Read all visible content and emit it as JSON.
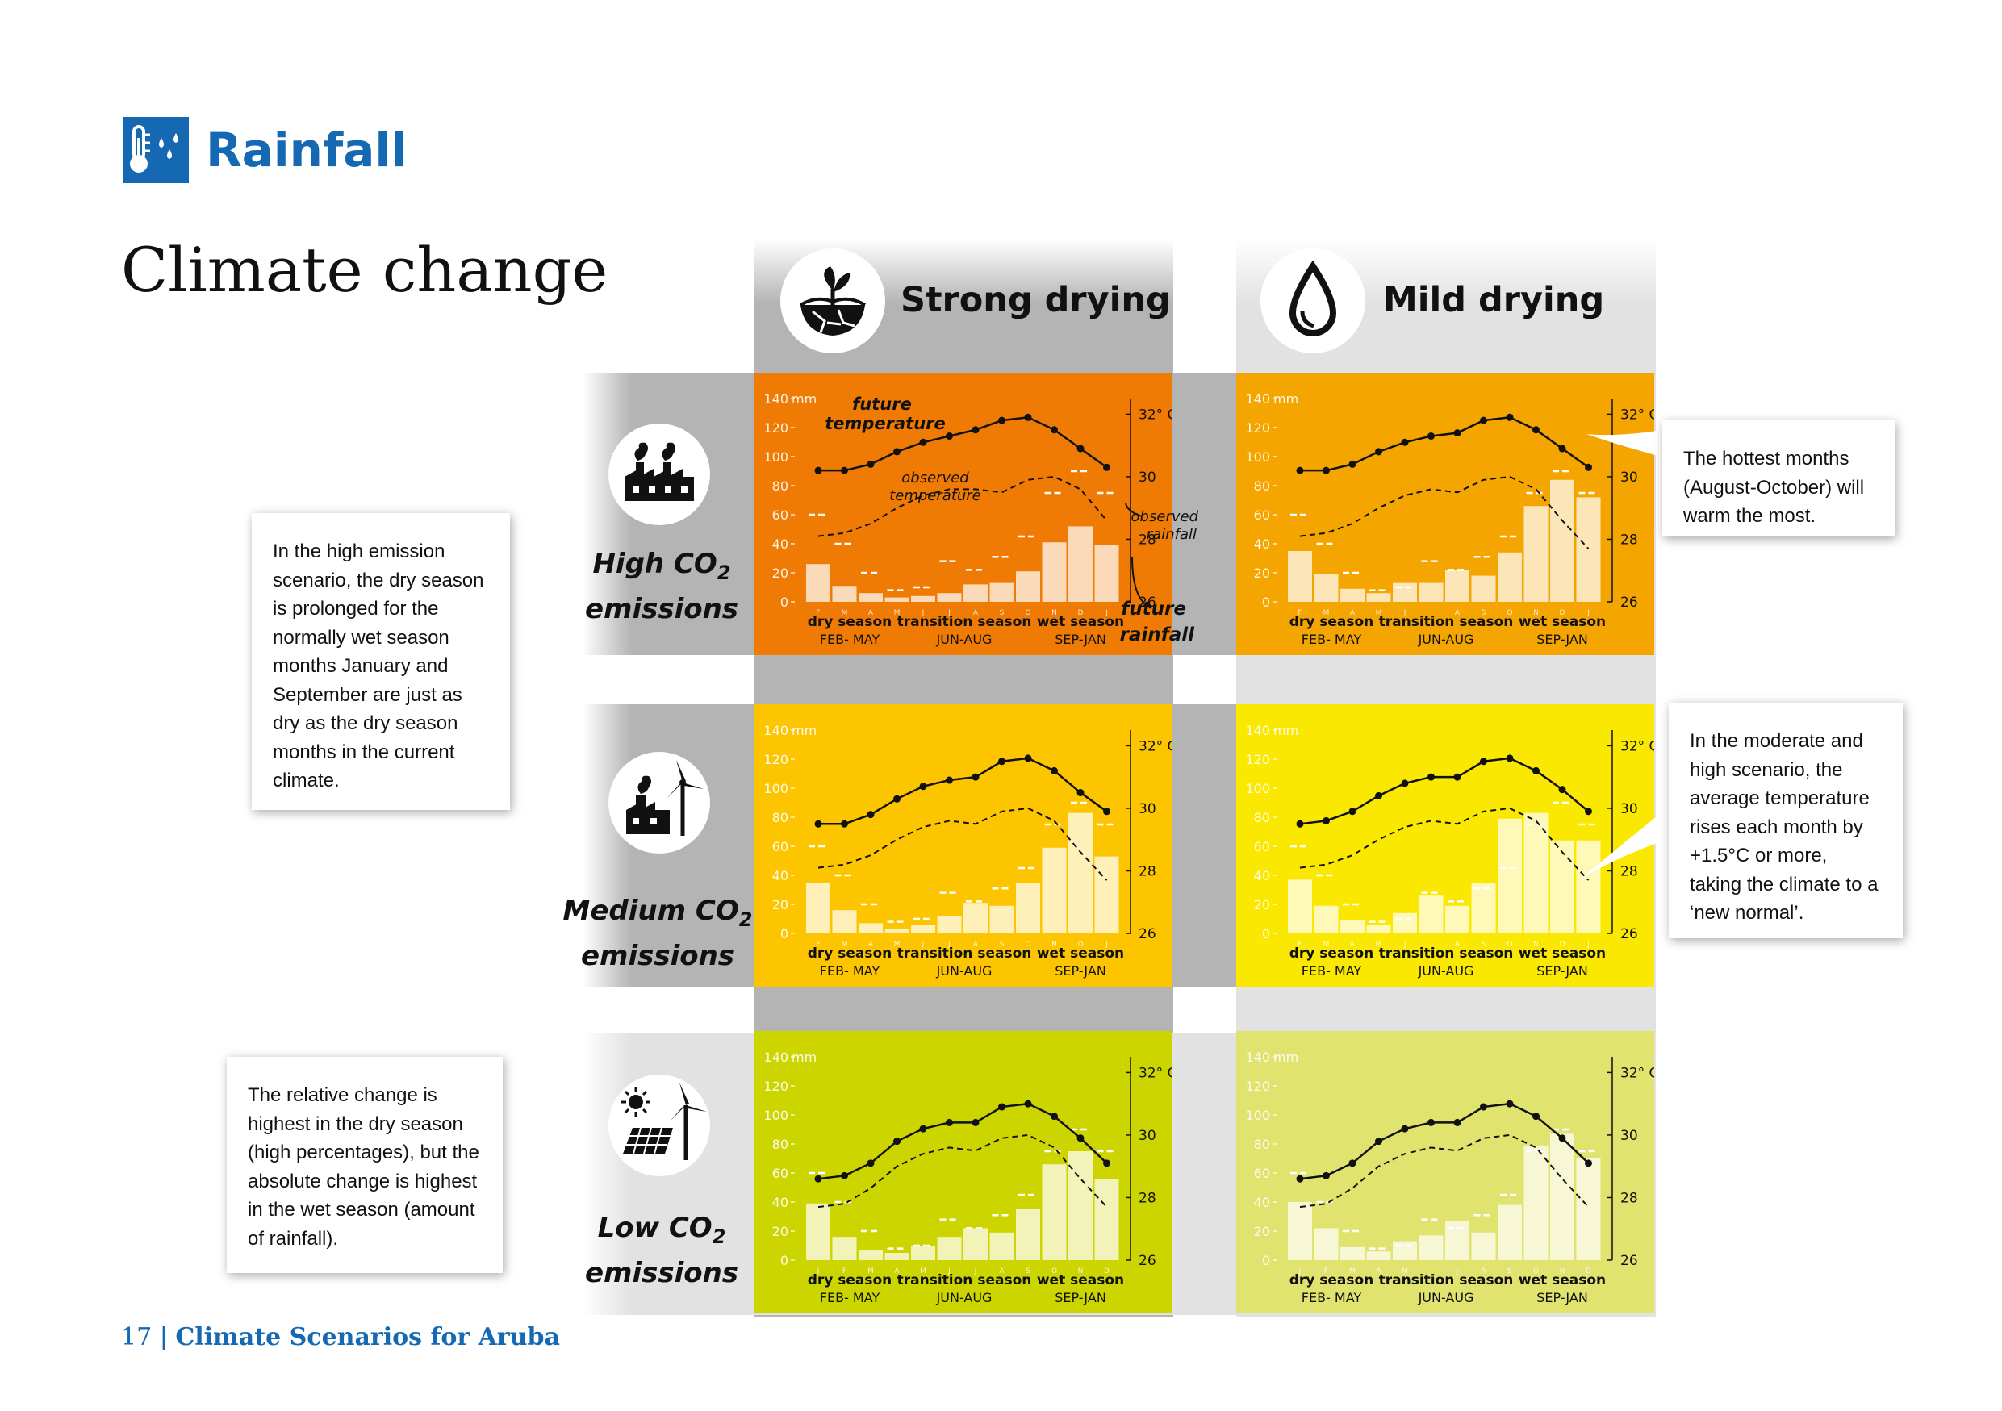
{
  "header": {
    "title": "Rainfall",
    "icon": "thermometer-rain-icon",
    "accent": "#1569b3"
  },
  "page_title": "Climate change",
  "columns": [
    {
      "title": "Strong drying",
      "icon": "cracked-earth-sprout-icon"
    },
    {
      "title": "Mild drying",
      "icon": "water-drop-icon"
    }
  ],
  "rows": [
    {
      "label_a": "High CO",
      "label_sub": "2",
      "label_b": "emissions",
      "icon": "factory-smoke-icon"
    },
    {
      "label_a": "Medium CO",
      "label_sub": "2",
      "label_b": "emissions",
      "icon": "factory-wind-turbine-icon"
    },
    {
      "label_a": "Low CO",
      "label_sub": "2",
      "label_b": "emissions",
      "icon": "solar-panel-wind-turbine-icon"
    }
  ],
  "annotations": {
    "future_temperature": "future temperature",
    "observed_temperature": "observed temperature",
    "observed_rainfall": "observed rainfall",
    "future_rainfall": "future rainfall"
  },
  "notes": {
    "high_emission": "In the high emission scenario, the dry season is prolonged for the normally wet season months January and September are just as dry as the dry season months in the current climate.",
    "relative_change": "The relative change is highest in the dry season (high percentages), but the absolute change is highest in the wet season (amount of rainfall).",
    "hottest_months": "The hottest months (August-October) will warm the most.",
    "moderate_high": "In the moderate and high scenario, the average temperature rises each month by +1.5°C or more, taking the climate to a ‘new normal’."
  },
  "footer": {
    "page": "17",
    "sep": "|",
    "doc": "Climate Scenarios for Aruba"
  },
  "chart_data": [
    {
      "panel": "high-strong",
      "type": "bar+line",
      "bg": "#ef7b04",
      "months": [
        "F",
        "M",
        "A",
        "M",
        "J",
        "J",
        "A",
        "S",
        "O",
        "N",
        "D",
        "J"
      ],
      "future_rainfall": [
        26,
        11,
        6,
        3,
        4,
        6,
        12,
        13,
        21,
        41,
        52,
        39
      ],
      "observed_rainfall": [
        60,
        40,
        20,
        8,
        10,
        28,
        22,
        31,
        45,
        75,
        90,
        75
      ],
      "future_temperature": [
        30.2,
        30.2,
        30.4,
        30.8,
        31.1,
        31.3,
        31.5,
        31.8,
        31.9,
        31.5,
        30.9,
        30.3
      ],
      "observed_temperature": [
        28.1,
        28.2,
        28.5,
        29.0,
        29.4,
        29.6,
        29.6,
        29.5,
        29.9,
        30.0,
        29.6,
        28.6
      ],
      "ylabel": "mm",
      "yticks": [
        0,
        20,
        40,
        60,
        80,
        100,
        120,
        140
      ],
      "ylim": [
        0,
        140
      ],
      "y2ticks": [
        "26",
        "28",
        "30",
        "32° C"
      ],
      "y2lim": [
        26,
        32.5
      ],
      "seasons": [
        {
          "name": "dry season",
          "months": "FEB- MAY"
        },
        {
          "name": "transition season",
          "months": "JUN-AUG"
        },
        {
          "name": "wet season",
          "months": "SEP-JAN"
        }
      ]
    },
    {
      "panel": "high-mild",
      "type": "bar+line",
      "bg": "#f5a500",
      "months": [
        "F",
        "M",
        "A",
        "M",
        "J",
        "J",
        "A",
        "S",
        "O",
        "N",
        "D",
        "J"
      ],
      "future_rainfall": [
        35,
        19,
        9,
        6,
        13,
        13,
        22,
        18,
        34,
        66,
        84,
        72
      ],
      "observed_rainfall": [
        60,
        40,
        20,
        8,
        10,
        28,
        22,
        31,
        45,
        75,
        90,
        75
      ],
      "future_temperature": [
        30.2,
        30.2,
        30.4,
        30.8,
        31.1,
        31.3,
        31.4,
        31.8,
        31.9,
        31.5,
        30.9,
        30.3
      ],
      "observed_temperature": [
        28.1,
        28.2,
        28.5,
        29.0,
        29.4,
        29.6,
        29.5,
        29.9,
        30.0,
        29.6,
        28.6,
        27.7
      ],
      "ylabel": "mm",
      "yticks": [
        0,
        20,
        40,
        60,
        80,
        100,
        120,
        140
      ],
      "ylim": [
        0,
        140
      ],
      "y2ticks": [
        "26",
        "28",
        "30",
        "32° C"
      ],
      "y2lim": [
        26,
        32.5
      ],
      "seasons": [
        {
          "name": "dry season",
          "months": "FEB- MAY"
        },
        {
          "name": "transition season",
          "months": "JUN-AUG"
        },
        {
          "name": "wet season",
          "months": "SEP-JAN"
        }
      ]
    },
    {
      "panel": "medium-strong",
      "type": "bar+line",
      "bg": "#fdc500",
      "months": [
        "F",
        "M",
        "A",
        "M",
        "J",
        "J",
        "A",
        "S",
        "O",
        "N",
        "D",
        "J"
      ],
      "future_rainfall": [
        35,
        16,
        7,
        3,
        6,
        12,
        21,
        19,
        35,
        59,
        83,
        53
      ],
      "observed_rainfall": [
        60,
        40,
        20,
        8,
        10,
        28,
        22,
        31,
        45,
        75,
        90,
        75
      ],
      "future_temperature": [
        29.5,
        29.5,
        29.8,
        30.3,
        30.7,
        30.9,
        31.0,
        31.5,
        31.6,
        31.2,
        30.5,
        29.9
      ],
      "observed_temperature": [
        28.1,
        28.2,
        28.5,
        29.0,
        29.4,
        29.6,
        29.5,
        29.9,
        30.0,
        29.6,
        28.6,
        27.7
      ],
      "ylabel": "mm",
      "yticks": [
        0,
        20,
        40,
        60,
        80,
        100,
        120,
        140
      ],
      "ylim": [
        0,
        140
      ],
      "y2ticks": [
        "26",
        "28",
        "30",
        "32° C"
      ],
      "y2lim": [
        26,
        32.5
      ],
      "seasons": [
        {
          "name": "dry season",
          "months": "FEB- MAY"
        },
        {
          "name": "transition season",
          "months": "JUN-AUG"
        },
        {
          "name": "wet season",
          "months": "SEP-JAN"
        }
      ]
    },
    {
      "panel": "medium-mild",
      "type": "bar+line",
      "bg": "#fbe801",
      "months": [
        "F",
        "M",
        "A",
        "M",
        "J",
        "J",
        "A",
        "S",
        "O",
        "N",
        "D",
        "J"
      ],
      "future_rainfall": [
        37,
        19,
        9,
        6,
        14,
        26,
        19,
        35,
        79,
        83,
        64,
        64
      ],
      "observed_rainfall": [
        60,
        40,
        20,
        8,
        10,
        28,
        22,
        31,
        45,
        75,
        90,
        75
      ],
      "future_temperature": [
        29.5,
        29.6,
        29.9,
        30.4,
        30.8,
        31.0,
        31.0,
        31.5,
        31.6,
        31.2,
        30.6,
        29.9
      ],
      "observed_temperature": [
        28.1,
        28.2,
        28.5,
        29.0,
        29.4,
        29.6,
        29.5,
        29.9,
        30.0,
        29.6,
        28.6,
        27.7
      ],
      "ylabel": "mm",
      "yticks": [
        0,
        20,
        40,
        60,
        80,
        100,
        120,
        140
      ],
      "ylim": [
        0,
        140
      ],
      "y2ticks": [
        "26",
        "28",
        "30",
        "32° C"
      ],
      "y2lim": [
        26,
        32.5
      ],
      "seasons": [
        {
          "name": "dry season",
          "months": "FEB- MAY"
        },
        {
          "name": "transition season",
          "months": "JUN-AUG"
        },
        {
          "name": "wet season",
          "months": "SEP-JAN"
        }
      ]
    },
    {
      "panel": "low-strong",
      "type": "bar+line",
      "bg": "#cdd500",
      "months": [
        "J",
        "F",
        "M",
        "A",
        "M",
        "J",
        "J",
        "A",
        "S",
        "O",
        "N",
        "D"
      ],
      "future_rainfall": [
        39,
        16,
        7,
        5,
        10,
        16,
        22,
        19,
        35,
        66,
        75,
        56
      ],
      "observed_rainfall": [
        60,
        40,
        20,
        8,
        10,
        28,
        22,
        31,
        45,
        75,
        90,
        75
      ],
      "future_temperature": [
        28.6,
        28.7,
        29.1,
        29.8,
        30.2,
        30.4,
        30.4,
        30.9,
        31.0,
        30.6,
        29.9,
        29.1
      ],
      "observed_temperature": [
        27.7,
        27.8,
        28.3,
        29.0,
        29.4,
        29.6,
        29.5,
        29.9,
        30.0,
        29.6,
        28.6,
        27.7
      ],
      "ylabel": "mm",
      "yticks": [
        0,
        20,
        40,
        60,
        80,
        100,
        120,
        140
      ],
      "ylim": [
        0,
        140
      ],
      "y2ticks": [
        "26",
        "28",
        "30",
        "32° C"
      ],
      "y2lim": [
        26,
        32.5
      ],
      "seasons": [
        {
          "name": "dry season",
          "months": "FEB- MAY"
        },
        {
          "name": "transition season",
          "months": "JUN-AUG"
        },
        {
          "name": "wet season",
          "months": "SEP-JAN"
        }
      ]
    },
    {
      "panel": "low-mild",
      "type": "bar+line",
      "bg": "#e0e36e",
      "months": [
        "J",
        "F",
        "M",
        "A",
        "M",
        "J",
        "J",
        "A",
        "S",
        "O",
        "N",
        "D"
      ],
      "future_rainfall": [
        40,
        22,
        9,
        6,
        13,
        17,
        27,
        19,
        38,
        79,
        87,
        70
      ],
      "observed_rainfall": [
        60,
        40,
        20,
        8,
        10,
        28,
        22,
        31,
        45,
        75,
        90,
        75
      ],
      "future_temperature": [
        28.6,
        28.7,
        29.1,
        29.8,
        30.2,
        30.4,
        30.4,
        30.9,
        31.0,
        30.6,
        29.9,
        29.1
      ],
      "observed_temperature": [
        27.7,
        27.8,
        28.3,
        29.0,
        29.4,
        29.6,
        29.5,
        29.9,
        30.0,
        29.6,
        28.6,
        27.7
      ],
      "ylabel": "mm",
      "yticks": [
        0,
        20,
        40,
        60,
        80,
        100,
        120,
        140
      ],
      "ylim": [
        0,
        140
      ],
      "y2ticks": [
        "26",
        "28",
        "30",
        "32° C"
      ],
      "y2lim": [
        26,
        32.5
      ],
      "seasons": [
        {
          "name": "dry season",
          "months": "FEB- MAY"
        },
        {
          "name": "transition season",
          "months": "JUN-AUG"
        },
        {
          "name": "wet season",
          "months": "SEP-JAN"
        }
      ]
    }
  ]
}
